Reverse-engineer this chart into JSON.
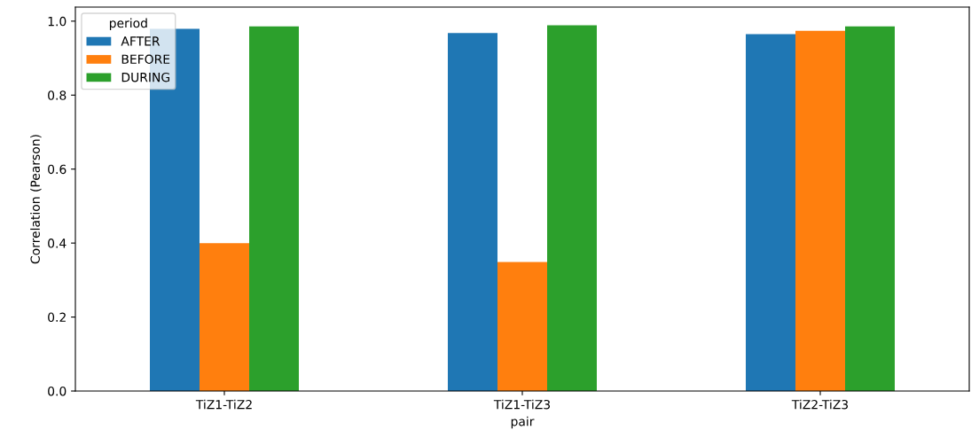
{
  "chart_data": {
    "type": "bar",
    "xlabel": "pair",
    "ylabel": "Correlation (Pearson)",
    "legend_title": "period",
    "legend": "top left",
    "categories": [
      "TiZ1-TiZ2",
      "TiZ1-TiZ3",
      "TiZ2-TiZ3"
    ],
    "series": [
      {
        "name": "AFTER",
        "color": "#1f77b4",
        "values": [
          0.979,
          0.968,
          0.965
        ]
      },
      {
        "name": "BEFORE",
        "color": "#ff7f0e",
        "values": [
          0.4,
          0.349,
          0.974
        ]
      },
      {
        "name": "DURING",
        "color": "#2ca02c",
        "values": [
          0.986,
          0.989,
          0.986
        ]
      }
    ],
    "ylim": [
      0,
      1.038
    ],
    "yticks": [
      {
        "value": 0,
        "label": "0.0"
      },
      {
        "value": 0.2,
        "label": "0.2"
      },
      {
        "value": 0.4,
        "label": "0.4"
      },
      {
        "value": 0.6,
        "label": "0.6"
      },
      {
        "value": 0.8,
        "label": "0.8"
      },
      {
        "value": 1.0,
        "label": "1.0"
      }
    ],
    "grid": false
  }
}
